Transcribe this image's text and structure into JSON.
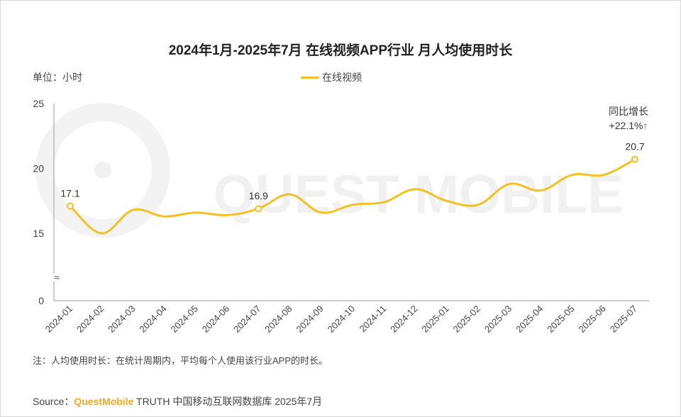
{
  "title": "2024年1月-2025年7月 在线视频APP行业 月人均使用时长",
  "unit_label": "单位：小时",
  "legend_label": "在线视频",
  "yoy": {
    "label": "同比增长",
    "value": "+22.1%",
    "arrow": "↑"
  },
  "note": "注：人均使用时长：在统计周期内，平均每个人使用该行业APP的时长。",
  "source": {
    "prefix": "Source：",
    "brand": "QuestMobile",
    "suffix": " TRUTH 中国移动互联网数据库 2025年7月"
  },
  "watermark": "QUEST MOBILE",
  "colors": {
    "line": "#f5c022",
    "axis": "#999999",
    "brand": "#f5a623",
    "arrow": "#e02020"
  },
  "chart_data": {
    "type": "line",
    "title": "2024年1月-2025年7月 在线视频APP行业 月人均使用时长",
    "ylabel": "单位：小时",
    "xlabel": "",
    "ylim": [
      0,
      25
    ],
    "y_axis_break": true,
    "y_ticks": [
      "0",
      "15",
      "20",
      "25"
    ],
    "grid": false,
    "legend_position": "top-center",
    "categories": [
      "2024-01",
      "2024-02",
      "2024-03",
      "2024-04",
      "2024-05",
      "2024-06",
      "2024-07",
      "2024-08",
      "2024-09",
      "2024-10",
      "2024-11",
      "2024-12",
      "2025-01",
      "2025-02",
      "2025-03",
      "2025-04",
      "2025-05",
      "2025-06",
      "2025-07"
    ],
    "series": [
      {
        "name": "在线视频",
        "values": [
          17.1,
          15.0,
          16.8,
          16.3,
          16.6,
          16.4,
          16.9,
          18.0,
          16.6,
          17.2,
          17.4,
          18.4,
          17.5,
          17.2,
          18.8,
          18.3,
          19.5,
          19.5,
          20.7
        ]
      }
    ],
    "data_labels": [
      {
        "category": "2024-01",
        "label": "17.1"
      },
      {
        "category": "2024-07",
        "label": "16.9"
      },
      {
        "category": "2025-07",
        "label": "20.7"
      }
    ]
  }
}
